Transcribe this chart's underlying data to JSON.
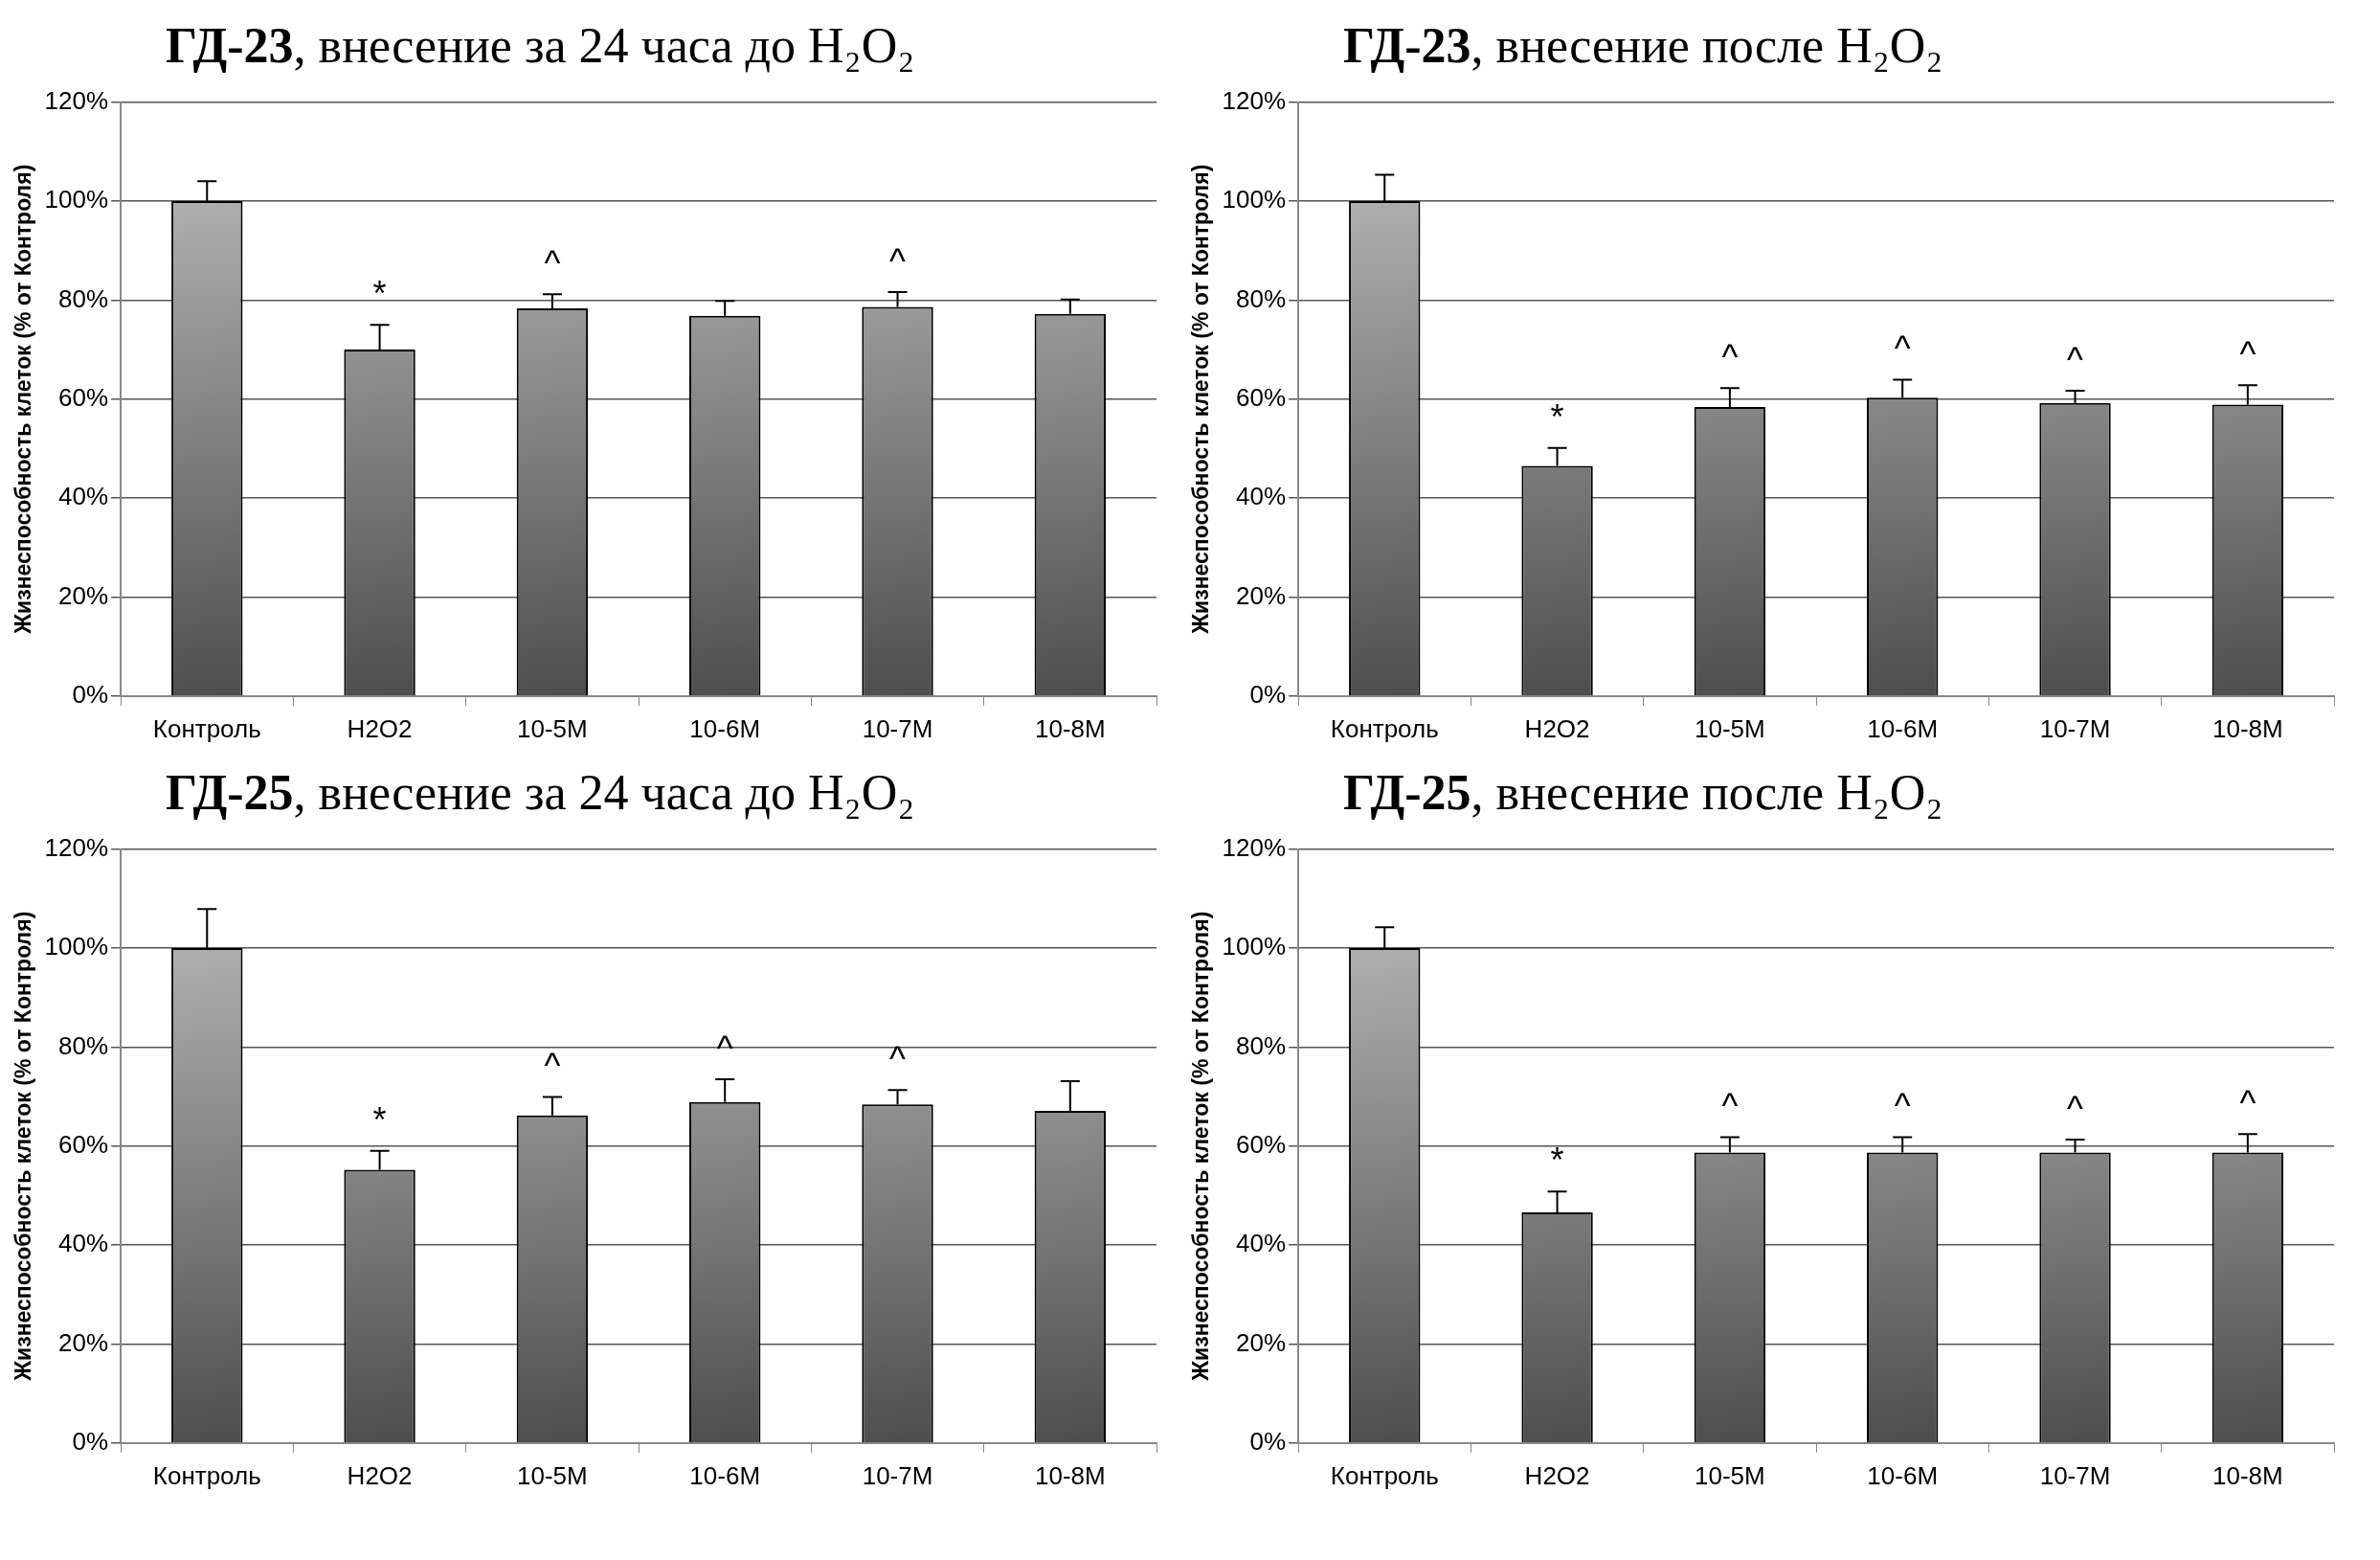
{
  "chart_data": [
    {
      "type": "bar",
      "title": "ГД-23, внесение за 24 часа до H₂O₂",
      "ylabel": "Жизнеспособность клеток (% от Контроля)",
      "categories": [
        "Контроль",
        "H2O2",
        "10-5M",
        "10-6M",
        "10-7M",
        "10-8M"
      ],
      "values": [
        100,
        70,
        78.3,
        76.8,
        78.6,
        77.2
      ],
      "errors": [
        [
          100,
          104
        ],
        [
          70,
          75
        ],
        [
          78.3,
          81.2
        ],
        [
          76.8,
          79.8
        ],
        [
          78.6,
          81.6
        ],
        [
          77.2,
          80.1
        ]
      ],
      "color": "#9a9a9a",
      "ylim": [
        0,
        120
      ],
      "yticks": [
        {
          "value": 0,
          "label": "0%"
        },
        {
          "value": 20,
          "label": "20%"
        },
        {
          "value": 40,
          "label": "40%"
        },
        {
          "value": 60,
          "label": "60%"
        },
        {
          "value": 80,
          "label": "80%"
        },
        {
          "value": 100,
          "label": "100%"
        },
        {
          "value": 120,
          "label": "120%"
        }
      ],
      "grid": "y",
      "annotations": [
        {
          "text": "*",
          "x": "H2O2",
          "y": 70
        },
        {
          "text": "^",
          "x": "10-5M",
          "y": 78.3
        },
        {
          "text": "^",
          "x": "10-7M",
          "y": 78.6
        }
      ]
    },
    {
      "type": "bar",
      "title": "ГД-23, внесение после H₂O₂",
      "ylabel": "Жизнеспособность клеток (% от Контроля)",
      "categories": [
        "Контроль",
        "H2O2",
        "10-5M",
        "10-6M",
        "10-7M",
        "10-8M"
      ],
      "values": [
        100,
        46.5,
        58.4,
        60.3,
        59.2,
        58.9
      ],
      "errors": [
        [
          100,
          105.3
        ],
        [
          46.5,
          50.1
        ],
        [
          58.4,
          62.2
        ],
        [
          60.3,
          63.9
        ],
        [
          59.2,
          61.7
        ],
        [
          58.9,
          62.8
        ]
      ],
      "color": "#9a9a9a",
      "ylim": [
        0,
        120
      ],
      "yticks": [
        {
          "value": 0,
          "label": "0%"
        },
        {
          "value": 20,
          "label": "20%"
        },
        {
          "value": 40,
          "label": "40%"
        },
        {
          "value": 60,
          "label": "60%"
        },
        {
          "value": 80,
          "label": "80%"
        },
        {
          "value": 100,
          "label": "100%"
        },
        {
          "value": 120,
          "label": "120%"
        }
      ],
      "grid": "y",
      "annotations": [
        {
          "text": "*",
          "x": "H2O2",
          "y": 46.5
        },
        {
          "text": "^",
          "x": "10-5M",
          "y": 58.4
        },
        {
          "text": "^",
          "x": "10-6M",
          "y": 60.3
        },
        {
          "text": "^",
          "x": "10-7M",
          "y": 59.2
        },
        {
          "text": "^",
          "x": "10-8M",
          "y": 58.9
        }
      ]
    },
    {
      "type": "bar",
      "title": "ГД-25, внесение за 24 часа до H₂O₂",
      "ylabel": "Жизнеспособность клеток (% от Контроля)",
      "categories": [
        "Контроль",
        "H2O2",
        "10-5M",
        "10-6M",
        "10-7M",
        "10-8M"
      ],
      "values": [
        100,
        55.2,
        66.2,
        68.9,
        68.4,
        67.1
      ],
      "errors": [
        [
          100,
          107.9
        ],
        [
          55.2,
          59
        ],
        [
          66.2,
          69.9
        ],
        [
          68.9,
          73.5
        ],
        [
          68.4,
          71.3
        ],
        [
          67.1,
          73.1
        ]
      ],
      "color": "#9a9a9a",
      "ylim": [
        0,
        120
      ],
      "yticks": [
        {
          "value": 0,
          "label": "0%"
        },
        {
          "value": 20,
          "label": "20%"
        },
        {
          "value": 40,
          "label": "40%"
        },
        {
          "value": 60,
          "label": "60%"
        },
        {
          "value": 80,
          "label": "80%"
        },
        {
          "value": 100,
          "label": "100%"
        },
        {
          "value": 120,
          "label": "120%"
        }
      ],
      "grid": "y",
      "annotations": [
        {
          "text": "*",
          "x": "H2O2",
          "y": 55.2
        },
        {
          "text": "^",
          "x": "10-5M",
          "y": 66.2
        },
        {
          "text": "^",
          "x": "10-6M",
          "y": 68.9
        },
        {
          "text": "^",
          "x": "10-7M",
          "y": 68.4
        }
      ]
    },
    {
      "type": "bar",
      "title": "ГД-25, внесение после H₂O₂",
      "ylabel": "Жизнеспособность клеток (% от Контроля)",
      "categories": [
        "Контроль",
        "H2O2",
        "10-5M",
        "10-6M",
        "10-7M",
        "10-8M"
      ],
      "values": [
        100,
        46.6,
        58.7,
        58.7,
        58.7,
        58.7
      ],
      "errors": [
        [
          100,
          104.2
        ],
        [
          46.6,
          50.8
        ],
        [
          58.7,
          61.8
        ],
        [
          58.7,
          61.8
        ],
        [
          58.7,
          61.3
        ],
        [
          58.7,
          62.4
        ]
      ],
      "color": "#9a9a9a",
      "ylim": [
        0,
        120
      ],
      "yticks": [
        {
          "value": 0,
          "label": "0%"
        },
        {
          "value": 20,
          "label": "20%"
        },
        {
          "value": 40,
          "label": "40%"
        },
        {
          "value": 60,
          "label": "60%"
        },
        {
          "value": 80,
          "label": "80%"
        },
        {
          "value": 100,
          "label": "100%"
        },
        {
          "value": 120,
          "label": "120%"
        }
      ],
      "grid": "y",
      "annotations": [
        {
          "text": "*",
          "x": "H2O2",
          "y": 46.6
        },
        {
          "text": "^",
          "x": "10-5M",
          "y": 58.7
        },
        {
          "text": "^",
          "x": "10-6M",
          "y": 58.7
        },
        {
          "text": "^",
          "x": "10-7M",
          "y": 58.7
        },
        {
          "text": "^",
          "x": "10-8M",
          "y": 58.7
        }
      ]
    }
  ]
}
